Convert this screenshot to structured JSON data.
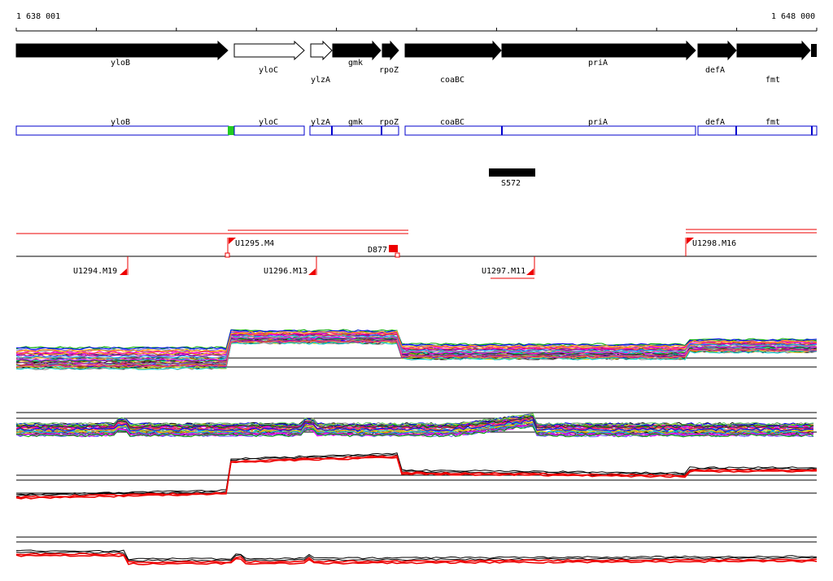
{
  "ruler": {
    "start_label": "1 638 001",
    "end_label": "1 648 000"
  },
  "genes": [
    {
      "name": "yloB",
      "strand": "+",
      "filled": true
    },
    {
      "name": "yloC",
      "strand": "+",
      "filled": false
    },
    {
      "name": "ylzA",
      "strand": "+",
      "filled": false
    },
    {
      "name": "gmk",
      "strand": "+",
      "filled": true
    },
    {
      "name": "rpoZ",
      "strand": "+",
      "filled": true
    },
    {
      "name": "coaBC",
      "strand": "+",
      "filled": true
    },
    {
      "name": "priA",
      "strand": "+",
      "filled": true
    },
    {
      "name": "defA",
      "strand": "+",
      "filled": true
    },
    {
      "name": "fmt",
      "strand": "+",
      "filled": true
    }
  ],
  "gene_boxes": [
    {
      "label": "yloB"
    },
    {
      "label": "yloC"
    },
    {
      "label": "ylzA"
    },
    {
      "label": "gmk"
    },
    {
      "label": "rpoZ"
    },
    {
      "label": "coaBC"
    },
    {
      "label": "priA"
    },
    {
      "label": "defA"
    },
    {
      "label": "fmt"
    }
  ],
  "feature": {
    "label": "S572"
  },
  "upper_markers": [
    {
      "label": "U1295.M4"
    },
    {
      "label": "D877"
    },
    {
      "label": "U1298.M16"
    }
  ],
  "lower_markers": [
    {
      "label": "U1294.M19"
    },
    {
      "label": "U1296.M13"
    },
    {
      "label": "U1297.M11"
    }
  ],
  "colors": {
    "gene_fill": "#000000",
    "box_border": "#0000cc",
    "green_marker": "#22cc22",
    "red": "#ee0000",
    "line_palette": [
      "#ff00ff",
      "#00aa00",
      "#0000ff",
      "#00cccc",
      "#ffaa00",
      "#aa00aa",
      "#888888",
      "#ff6666",
      "#66cc66",
      "#cccc00",
      "#6666ff",
      "#aa5500",
      "#ff0088",
      "#00aaff",
      "#993399",
      "#333333"
    ]
  }
}
